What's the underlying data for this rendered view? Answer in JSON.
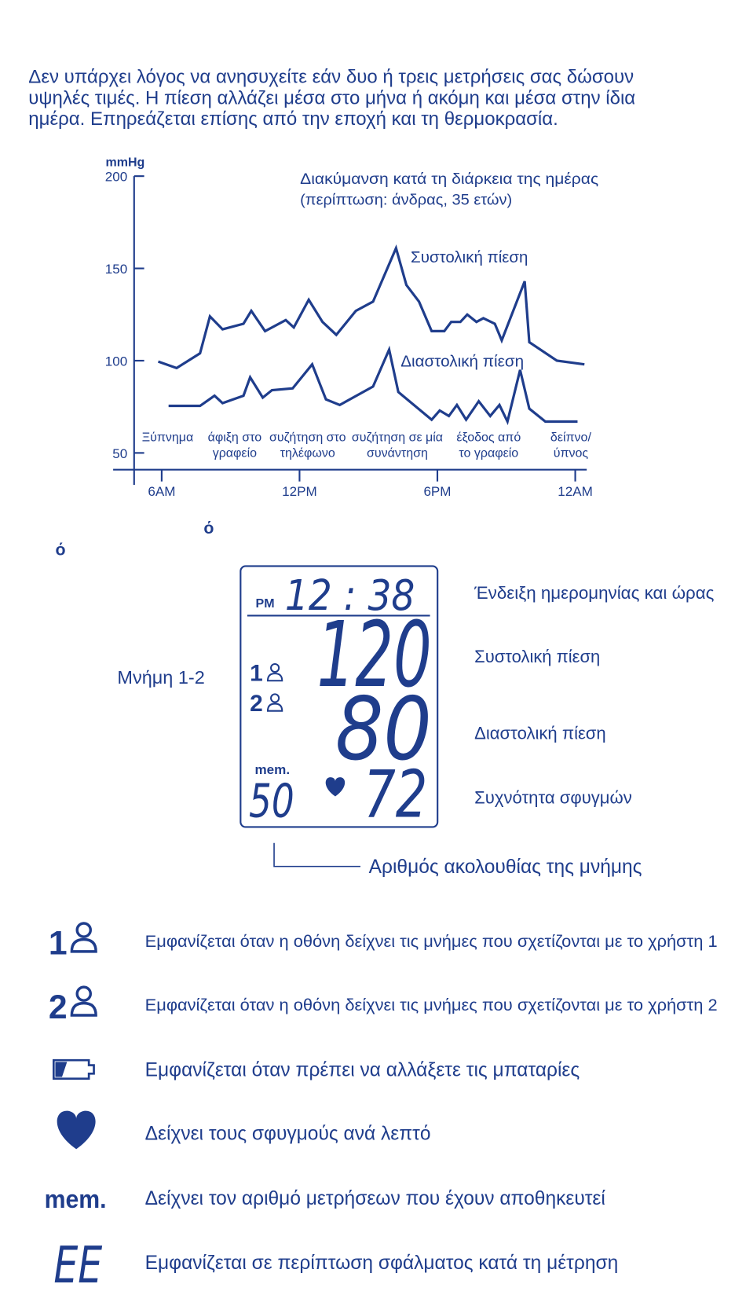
{
  "intro": [
    "Δεν υπάρχει λόγος να ανησυχείτε εάν δυο ή τρεις μετρήσεις σας δώσουν",
    "υψηλές τιμές. Η πίεση αλλάζει μέσα στο μήνα ή ακόμη και μέσα στην ίδια",
    "ημέρα. Επηρεάζεται επίσης από την εποχή και τη θερμοκρασία."
  ],
  "chart_data": {
    "type": "line",
    "title": "Διακύμανση κατά τη διάρκεια της ημέρας",
    "subtitle": "(περίπτωση: άνδρας, 35 ετών)",
    "y_label": "mmHg",
    "xlim": [
      4.8,
      24.5
    ],
    "xticks": [
      {
        "value": 6,
        "label": "6AM"
      },
      {
        "value": 12,
        "label": "12PM"
      },
      {
        "value": 18,
        "label": "6PM"
      },
      {
        "value": 24,
        "label": "12AM"
      }
    ],
    "ylim": [
      40,
      200
    ],
    "yticks": [
      50,
      100,
      150,
      200
    ],
    "series": [
      {
        "name": "Συστολική πίεση",
        "color": "#1f3d8c",
        "x": [
          5.85,
          6.65,
          7.67,
          8.1,
          8.65,
          9.56,
          9.9,
          10.5,
          11.4,
          11.75,
          12.4,
          13.0,
          13.6,
          14.45,
          15.2,
          16.2,
          16.65,
          17.2,
          17.75,
          18.3,
          18.6,
          19.0,
          19.3,
          19.7,
          20.0,
          20.5,
          20.8,
          21.8,
          22.0,
          23.2,
          24.4
        ],
        "values": [
          99.5,
          96,
          104,
          124,
          117,
          120,
          127,
          116,
          122,
          118,
          133,
          121,
          114,
          127,
          132,
          161,
          141,
          132,
          116,
          116,
          121,
          121,
          125,
          121,
          123,
          120,
          111,
          143,
          110,
          100,
          98
        ]
      },
      {
        "name": "Διαστολική πίεση",
        "color": "#1f3d8c",
        "x": [
          6.3,
          7.67,
          8.3,
          8.65,
          9.56,
          9.85,
          10.4,
          10.8,
          11.7,
          12.55,
          13.15,
          13.75,
          15.2,
          15.9,
          16.3,
          17.75,
          18.1,
          18.5,
          18.85,
          19.25,
          19.8,
          20.3,
          20.7,
          21.05,
          21.6,
          22.0,
          22.7,
          24.1
        ],
        "values": [
          75.5,
          75.5,
          81,
          77,
          81,
          91,
          80,
          84,
          85,
          98,
          79,
          76,
          86,
          106,
          83,
          68,
          73,
          70,
          76,
          68,
          78,
          70,
          76,
          67,
          95,
          74,
          67,
          67
        ]
      }
    ],
    "annotations": [
      [
        "Ξύπνημα"
      ],
      [
        "άφιξη στο",
        "γραφείο"
      ],
      [
        "συζήτηση στο",
        "τηλέφωνο"
      ],
      [
        "συζήτηση σε μία",
        "συνάντηση"
      ],
      [
        "έξοδος από",
        "το γραφείο"
      ],
      [
        "δείπνο/",
        "ύπνος"
      ]
    ]
  },
  "stray_marks": [
    "ό",
    "ό"
  ],
  "display": {
    "period": "PM",
    "time": "12 : 38",
    "systolic": "120",
    "diastolic": "80",
    "pulse": "72",
    "memory_label": "mem.",
    "memory_number": "50",
    "users": [
      "1",
      "2"
    ]
  },
  "display_labels": {
    "datetime": "Ένδειξη ημερομηνίας και ώρας",
    "systolic": "Συστολική πίεση",
    "diastolic": "Διαστολική πίεση",
    "pulse": "Συχνότητα σφυγμών",
    "memory": "Μνήμη 1-2",
    "sequence": "Αριθμός ακολουθίας της μνήμης"
  },
  "symbols": [
    {
      "icon": "1",
      "text": "Εμφανίζεται όταν η οθόνη δείχνει τις μνήμες που σχετίζονται με το χρήστη 1"
    },
    {
      "icon": "2",
      "text": "Εμφανίζεται όταν η οθόνη δείχνει τις μνήμες που σχετίζονται με το χρήστη 2"
    },
    {
      "text": "Εμφανίζεται όταν πρέπει να αλλάξετε τις μπαταρίες"
    },
    {
      "text": "Δείχνει τους σφυγμούς ανά λεπτό"
    },
    {
      "icon": "mem.",
      "text": "Δείχνει τον αριθμό μετρήσεων που έχουν αποθηκευτεί"
    },
    {
      "icon": "EE",
      "text": "Εμφανίζεται σε περίπτωση σφάλματος κατά τη μέτρηση"
    }
  ]
}
